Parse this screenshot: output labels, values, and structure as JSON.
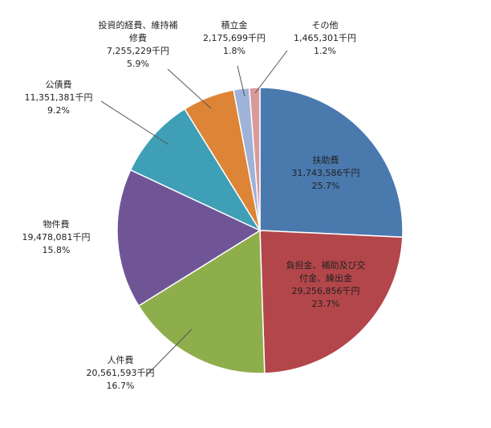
{
  "chart_data": {
    "type": "pie",
    "unit": "千円",
    "slices": [
      {
        "lines": [
          "扶助費",
          "31,743,586千円",
          "25.7%"
        ],
        "value": 31743586,
        "percent": 25.7,
        "color": "#4A79AE"
      },
      {
        "lines": [
          "負担金、補助及び交",
          "付金、繰出金",
          "29,256,856千円",
          "23.7%"
        ],
        "value": 29256856,
        "percent": 23.7,
        "color": "#B3464A"
      },
      {
        "lines": [
          "人件費",
          "20,561,593千円",
          "16.7%"
        ],
        "value": 20561593,
        "percent": 16.7,
        "color": "#8EAE4C"
      },
      {
        "lines": [
          "物件費",
          "19,478,081千円",
          "15.8%"
        ],
        "value": 19478081,
        "percent": 15.8,
        "color": "#6F5596"
      },
      {
        "lines": [
          "公債費",
          "11,351,381千円",
          "9.2%"
        ],
        "value": 11351381,
        "percent": 9.2,
        "color": "#3E9FB6"
      },
      {
        "lines": [
          "投資的経費、維持補",
          "修費",
          "7,255,229千円",
          "5.9%"
        ],
        "value": 7255229,
        "percent": 5.9,
        "color": "#DD8436"
      },
      {
        "lines": [
          "積立金",
          "2,175,699千円",
          "1.8%"
        ],
        "value": 2175699,
        "percent": 1.8,
        "color": "#9FB2D8"
      },
      {
        "lines": [
          "その他",
          "1,465,301千円",
          "1.2%"
        ],
        "value": 1465301,
        "percent": 1.2,
        "color": "#D99A9C"
      }
    ]
  }
}
